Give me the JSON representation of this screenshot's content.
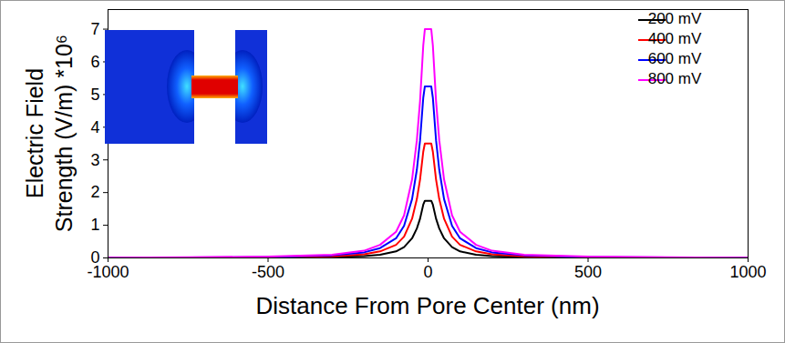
{
  "chart_data": {
    "type": "line",
    "x_label": "Distance From Pore Center (nm)",
    "y_label": [
      "Electric Field",
      "Strength (V/m) *10⁶"
    ],
    "x": [
      -1000,
      -750,
      -500,
      -300,
      -200,
      -150,
      -100,
      -75,
      -50,
      -35,
      -25,
      -15,
      -10,
      0,
      10,
      15,
      25,
      35,
      50,
      75,
      100,
      150,
      200,
      300,
      500,
      750,
      1000
    ],
    "series": [
      {
        "name": "200 mV",
        "color": "#000000",
        "values": [
          0.003,
          0.005,
          0.01,
          0.03,
          0.055,
          0.1,
          0.2,
          0.33,
          0.6,
          0.9,
          1.2,
          1.63,
          1.75,
          1.75,
          1.75,
          1.63,
          1.2,
          0.9,
          0.6,
          0.33,
          0.2,
          0.1,
          0.055,
          0.03,
          0.01,
          0.005,
          0.003
        ]
      },
      {
        "name": "400 mV",
        "color": "#ff0000",
        "values": [
          0.005,
          0.01,
          0.02,
          0.05,
          0.11,
          0.2,
          0.4,
          0.65,
          1.2,
          1.8,
          2.4,
          3.25,
          3.5,
          3.5,
          3.5,
          3.25,
          2.4,
          1.8,
          1.2,
          0.65,
          0.4,
          0.2,
          0.11,
          0.05,
          0.02,
          0.01,
          0.005
        ]
      },
      {
        "name": "600 mV",
        "color": "#0000ff",
        "values": [
          0.008,
          0.015,
          0.03,
          0.08,
          0.17,
          0.3,
          0.6,
          0.98,
          1.8,
          2.7,
          3.6,
          4.9,
          5.25,
          5.25,
          5.25,
          4.9,
          3.6,
          2.7,
          1.8,
          0.98,
          0.6,
          0.3,
          0.17,
          0.08,
          0.03,
          0.015,
          0.008
        ]
      },
      {
        "name": "800 mV",
        "color": "#ff00ff",
        "values": [
          0.01,
          0.02,
          0.04,
          0.1,
          0.22,
          0.4,
          0.8,
          1.3,
          2.4,
          3.6,
          4.8,
          6.5,
          7.0,
          7.0,
          7.0,
          6.5,
          4.8,
          3.6,
          2.4,
          1.3,
          0.8,
          0.4,
          0.22,
          0.1,
          0.04,
          0.02,
          0.01
        ]
      }
    ],
    "xlim": [
      -1000,
      1000
    ],
    "xticks": [
      -1000,
      -500,
      0,
      500,
      1000
    ],
    "ylim": [
      0,
      7.6
    ],
    "yticks": [
      0,
      1,
      2,
      3,
      4,
      5,
      6,
      7
    ],
    "legend": "top-right",
    "grid": false
  }
}
